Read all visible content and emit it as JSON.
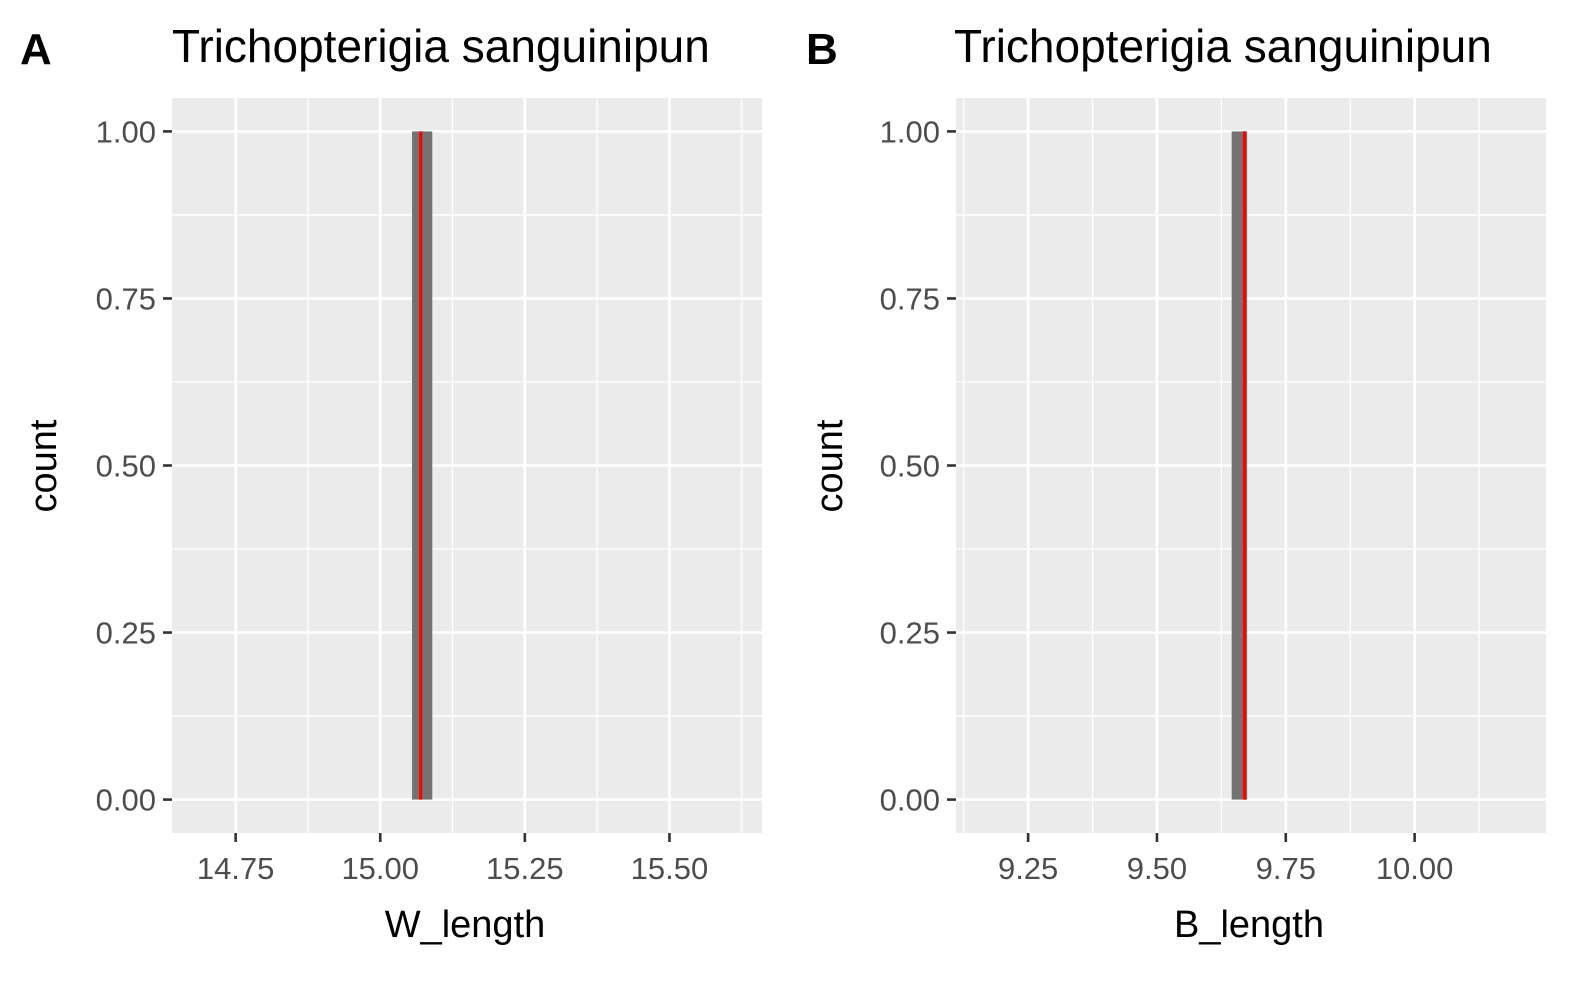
{
  "chart_data": [
    {
      "type": "bar",
      "panel_tag": "A",
      "title": "Trichopterigia sanguinipun",
      "xlabel": "W_length",
      "ylabel": "count",
      "xlim": [
        14.64,
        15.66
      ],
      "ylim": [
        -0.05,
        1.05
      ],
      "x_ticks": [
        "14.75",
        "15.00",
        "15.25",
        "15.50"
      ],
      "y_ticks": [
        "0.00",
        "0.25",
        "0.50",
        "0.75",
        "1.00"
      ],
      "bars": [
        {
          "x_start": 15.055,
          "x_end": 15.09,
          "count": 1
        }
      ],
      "reference_line_x": 15.07,
      "grid": true,
      "colors": {
        "panel": "#ebebeb",
        "grid": "#ffffff",
        "bar": "#737373",
        "reference_line": "#ff0000"
      }
    },
    {
      "type": "bar",
      "panel_tag": "B",
      "title": "Trichopterigia sanguinipun",
      "xlabel": "B_length",
      "ylabel": "count",
      "xlim": [
        9.11,
        10.255
      ],
      "ylim": [
        -0.05,
        1.05
      ],
      "x_ticks": [
        "9.25",
        "9.50",
        "9.75",
        "10.00"
      ],
      "y_ticks": [
        "0.00",
        "0.25",
        "0.50",
        "0.75",
        "1.00"
      ],
      "bars": [
        {
          "x_start": 9.645,
          "x_end": 9.675,
          "count": 1
        }
      ],
      "reference_line_x": 9.67,
      "grid": true,
      "colors": {
        "panel": "#ebebeb",
        "grid": "#ffffff",
        "bar": "#737373",
        "reference_line": "#ff0000"
      }
    }
  ]
}
